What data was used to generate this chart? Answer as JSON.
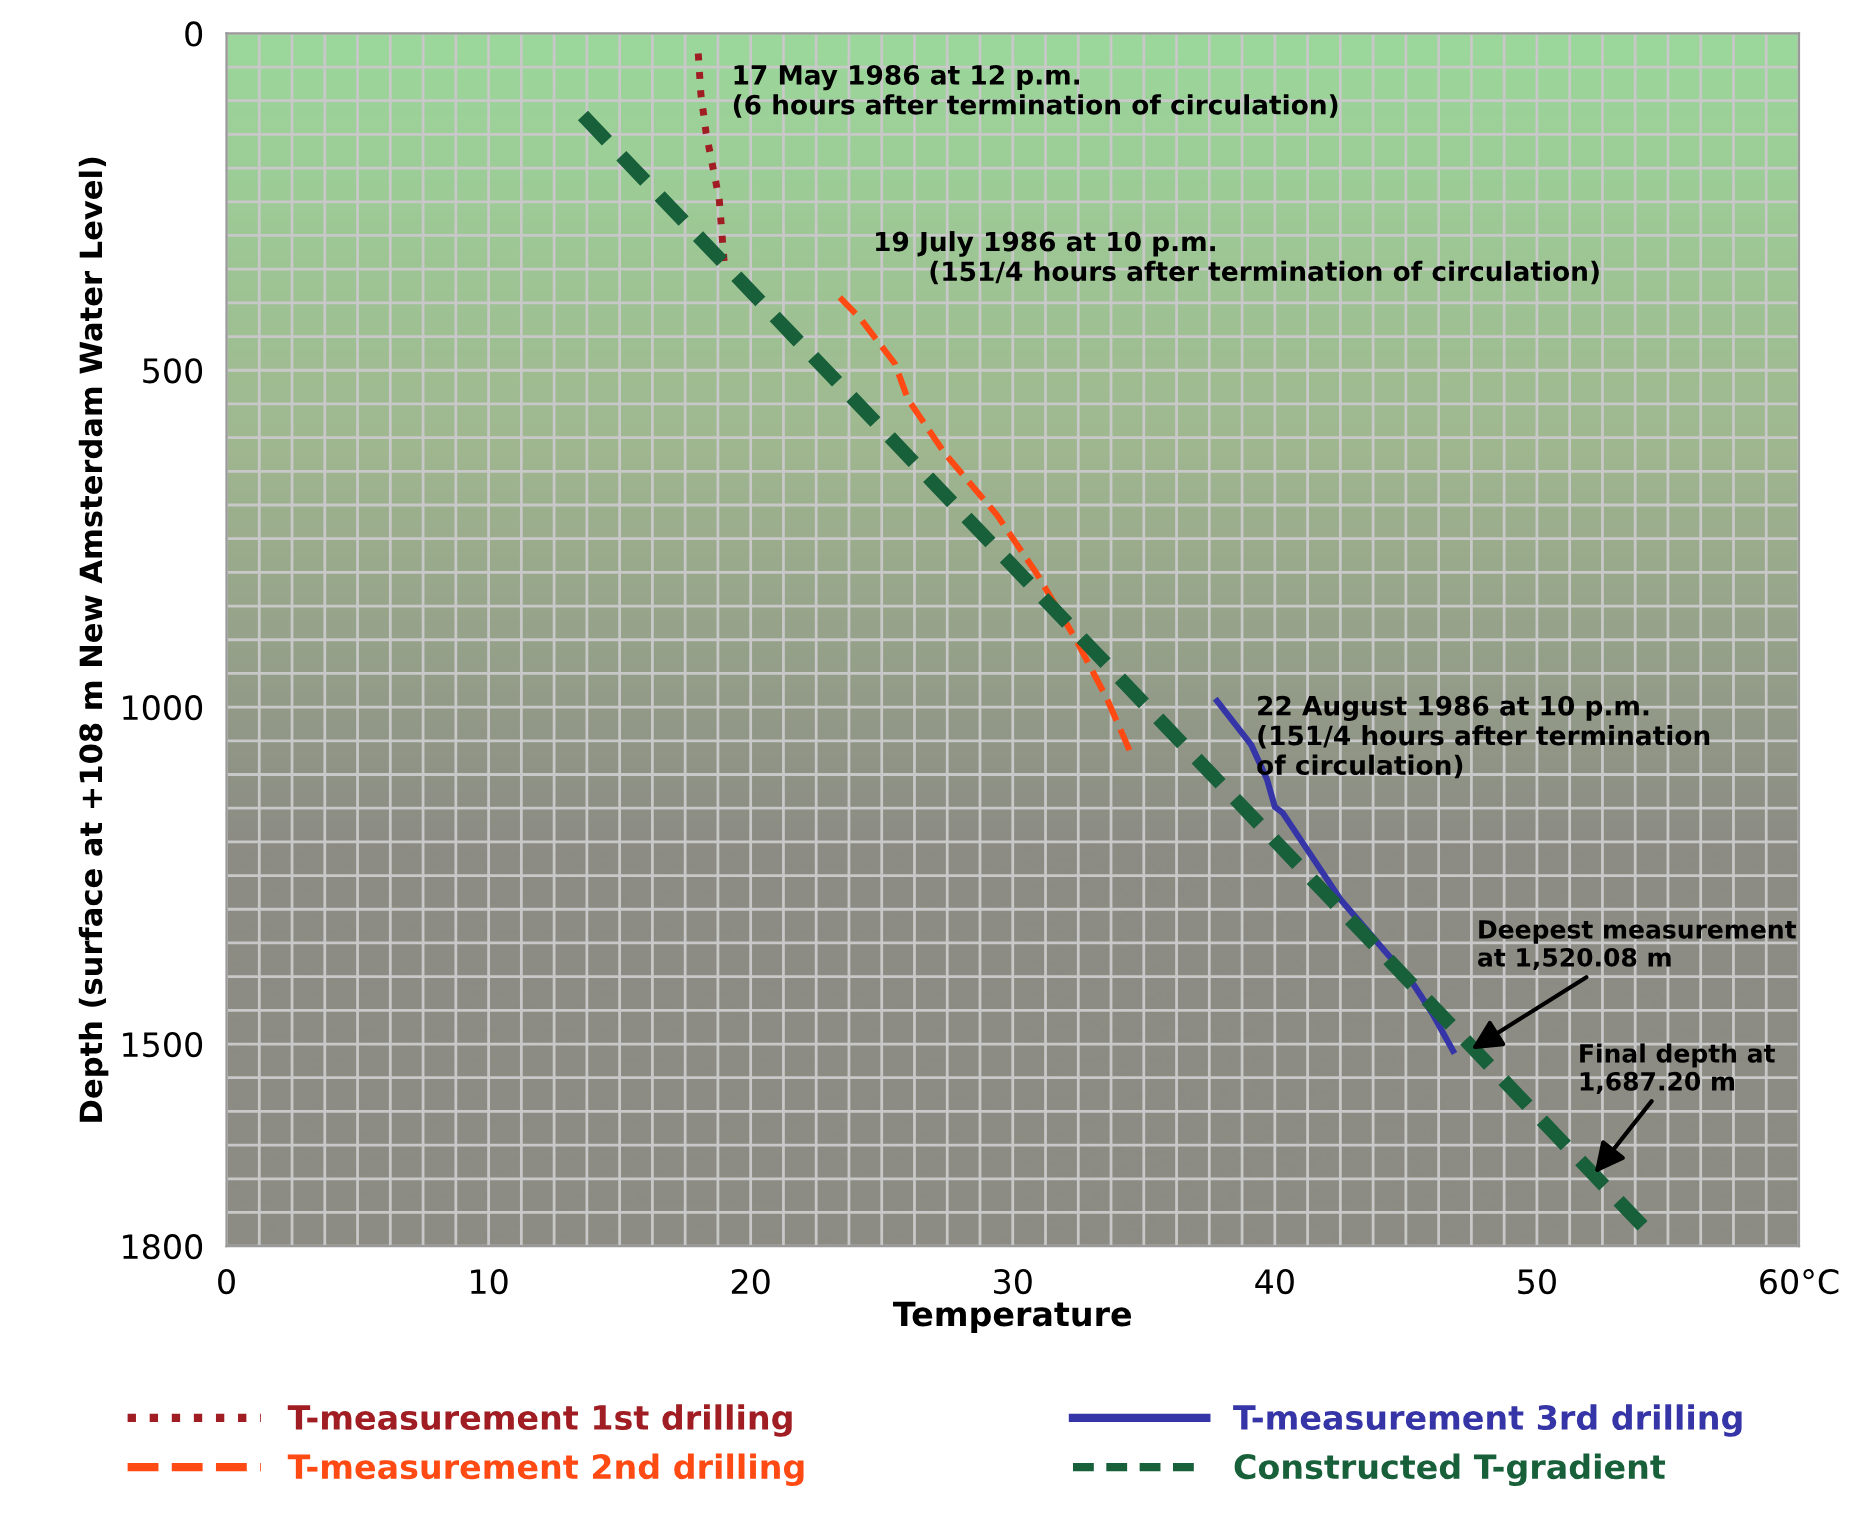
{
  "chart_data": {
    "type": "line",
    "xlabel": "Temperature",
    "ylabel": "Depth (surface at +108 m New Amsterdam Water Level)",
    "xlim": [
      0,
      60
    ],
    "xticks": [
      0,
      10,
      20,
      30,
      40,
      50,
      {
        "value": 60,
        "label": "60°C"
      }
    ],
    "ylim": [
      1800,
      0
    ],
    "yticks": [
      0,
      500,
      1000,
      1500,
      1800
    ],
    "grid": true,
    "legend": "bottom",
    "series": [
      {
        "name": "T-measurement 1st drilling",
        "color": "#a01e23",
        "line_style": "dotted",
        "x": [
          18.0,
          18.1,
          18.3,
          18.8,
          19.0
        ],
        "values": [
          30,
          90,
          148,
          246,
          345
        ]
      },
      {
        "name": "T-measurement 2nd drilling",
        "color": "#ff4a14",
        "line_style": "dashed",
        "x": [
          23.4,
          24.2,
          25.5,
          26.0,
          27.4,
          29.4,
          30.9,
          32.4,
          33.6,
          34.6
        ],
        "values": [
          392,
          424,
          490,
          543,
          623,
          715,
          801,
          899,
          988,
          1077
        ]
      },
      {
        "name": "T-measurement 3rd drilling",
        "color": "#3535a8",
        "line_style": "solid",
        "x": [
          37.8,
          39.1,
          39.7,
          40.0,
          40.3,
          42.5,
          45.3,
          46.0,
          46.8
        ],
        "values": [
          991,
          1056,
          1107,
          1148,
          1157,
          1285,
          1412,
          1454,
          1510
        ]
      },
      {
        "name": "Constructed T-gradient",
        "color": "#17603a",
        "line_style": "dashed",
        "x": [
          13.6,
          54.5
        ],
        "values": [
          122,
          1789
        ]
      }
    ],
    "annotations": [
      {
        "text": "17 May 1986 at 12 p.m.\n(6 hours after termination of circulation)",
        "x": 18.0,
        "y": 30
      },
      {
        "text": "19 July 1986 at 10 p.m.\n      (151/4 hours after termination of circulation)",
        "x": 23.4,
        "y": 392
      },
      {
        "text": "22 August 1986 at 10 p.m.\n(151/4 hours after termination\nof circulation)",
        "x": 37.8,
        "y": 991
      },
      {
        "text": "Deepest measurement\nat 1,520.08 m",
        "x": 47.5,
        "y": 1508
      },
      {
        "text": "Final depth at\n1,687.20 m",
        "x": 52.2,
        "y": 1692
      }
    ]
  }
}
